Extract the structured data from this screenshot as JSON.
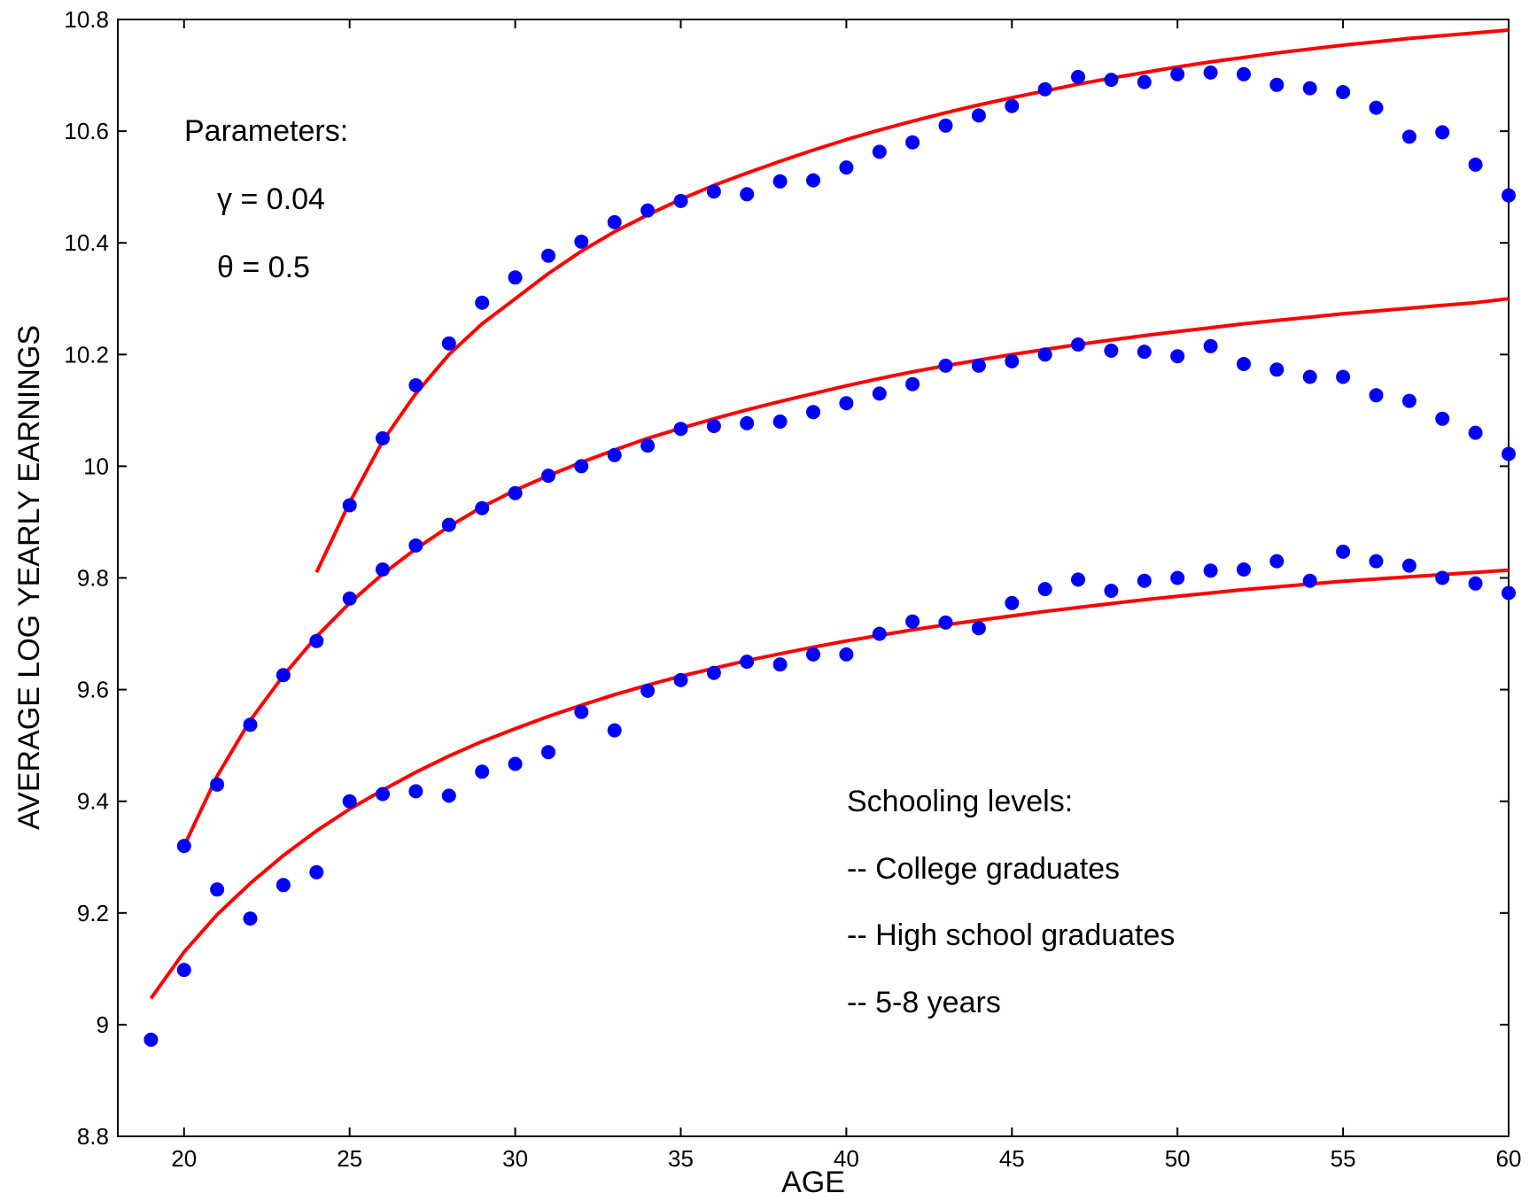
{
  "chart_data": {
    "type": "scatter",
    "xlabel": "AGE",
    "ylabel": "AVERAGE LOG YEARLY EARNINGS",
    "xlim": [
      18,
      60
    ],
    "ylim": [
      8.8,
      10.8
    ],
    "xticks": [
      20,
      25,
      30,
      35,
      40,
      45,
      50,
      55,
      60
    ],
    "yticks": [
      8.8,
      9,
      9.2,
      9.4,
      9.6,
      9.8,
      10,
      10.2,
      10.4,
      10.6,
      10.8
    ],
    "grid": false,
    "colors": {
      "data_points": "#0000ff",
      "model_fit": "#ff0000"
    },
    "annotations": {
      "params_title": "Parameters:",
      "gamma": "γ = 0.04",
      "theta": "θ = 0.5",
      "legend_title": "Schooling levels:",
      "legend_items": [
        "-- College graduates",
        "-- High school graduates",
        "-- 5-8 years"
      ]
    },
    "series": [
      {
        "type": "scatter",
        "x": [
          25,
          26,
          27,
          28,
          29,
          30,
          31,
          32,
          33,
          34,
          35,
          36,
          37,
          38,
          39,
          40,
          41,
          42,
          43,
          44,
          45,
          46,
          47,
          48,
          49,
          50,
          51,
          52,
          53,
          54,
          55,
          56,
          57,
          58,
          59,
          60
        ],
        "y": [
          9.93,
          10.05,
          10.145,
          10.22,
          10.293,
          10.338,
          10.377,
          10.402,
          10.437,
          10.458,
          10.475,
          10.492,
          10.487,
          10.51,
          10.512,
          10.535,
          10.563,
          10.58,
          10.61,
          10.628,
          10.645,
          10.675,
          10.697,
          10.692,
          10.688,
          10.702,
          10.705,
          10.702,
          10.683,
          10.677,
          10.67,
          10.642,
          10.59,
          10.598,
          10.54,
          10.485
        ]
      },
      {
        "type": "line",
        "x": [
          24,
          25,
          26,
          27,
          28,
          29,
          30,
          31,
          32,
          33,
          34,
          35,
          36,
          37,
          38,
          39,
          40,
          41,
          42,
          43,
          44,
          45,
          46,
          47,
          48,
          49,
          50,
          51,
          52,
          53,
          54,
          55,
          56,
          57,
          58,
          59,
          60
        ],
        "y": [
          9.81,
          9.935,
          10.045,
          10.13,
          10.2,
          10.255,
          10.3,
          10.345,
          10.385,
          10.42,
          10.45,
          10.478,
          10.503,
          10.525,
          10.546,
          10.566,
          10.585,
          10.602,
          10.618,
          10.633,
          10.647,
          10.66,
          10.672,
          10.684,
          10.695,
          10.705,
          10.715,
          10.724,
          10.732,
          10.74,
          10.747,
          10.754,
          10.76,
          10.766,
          10.771,
          10.776,
          10.781
        ]
      },
      {
        "type": "scatter",
        "x": [
          20,
          21,
          22,
          23,
          24,
          25,
          26,
          27,
          28,
          29,
          30,
          31,
          32,
          33,
          34,
          35,
          36,
          37,
          38,
          39,
          40,
          41,
          42,
          43,
          44,
          45,
          46,
          47,
          48,
          49,
          50,
          51,
          52,
          53,
          54,
          55,
          56,
          57,
          58,
          59,
          60
        ],
        "y": [
          9.32,
          9.43,
          9.537,
          9.626,
          9.687,
          9.763,
          9.815,
          9.858,
          9.895,
          9.925,
          9.952,
          9.983,
          10.0,
          10.02,
          10.037,
          10.067,
          10.072,
          10.077,
          10.08,
          10.097,
          10.113,
          10.13,
          10.147,
          10.18,
          10.18,
          10.188,
          10.2,
          10.218,
          10.207,
          10.205,
          10.197,
          10.215,
          10.183,
          10.173,
          10.16,
          10.16,
          10.127,
          10.117,
          10.085,
          10.06,
          10.022
        ]
      },
      {
        "type": "line",
        "x": [
          20,
          21,
          22,
          23,
          24,
          25,
          26,
          27,
          28,
          29,
          30,
          31,
          32,
          33,
          34,
          35,
          36,
          37,
          38,
          39,
          40,
          41,
          42,
          43,
          44,
          45,
          46,
          47,
          48,
          49,
          50,
          51,
          52,
          53,
          54,
          55,
          56,
          57,
          58,
          59,
          60
        ],
        "y": [
          9.32,
          9.445,
          9.545,
          9.625,
          9.695,
          9.755,
          9.807,
          9.852,
          9.892,
          9.927,
          9.957,
          9.983,
          10.007,
          10.029,
          10.05,
          10.068,
          10.085,
          10.101,
          10.116,
          10.13,
          10.144,
          10.157,
          10.169,
          10.18,
          10.19,
          10.2,
          10.209,
          10.218,
          10.226,
          10.234,
          10.241,
          10.248,
          10.255,
          10.261,
          10.267,
          10.273,
          10.278,
          10.283,
          10.288,
          10.293,
          10.3
        ]
      },
      {
        "type": "scatter",
        "x": [
          19,
          20,
          21,
          22,
          23,
          24,
          25,
          26,
          27,
          28,
          29,
          30,
          31,
          32,
          33,
          34,
          35,
          36,
          37,
          38,
          39,
          40,
          41,
          42,
          43,
          44,
          45,
          46,
          47,
          48,
          49,
          50,
          51,
          52,
          53,
          54,
          55,
          56,
          57,
          58,
          59,
          60
        ],
        "y": [
          8.973,
          9.098,
          9.242,
          9.19,
          9.25,
          9.273,
          9.4,
          9.413,
          9.418,
          9.41,
          9.453,
          9.467,
          9.488,
          9.56,
          9.527,
          9.598,
          9.617,
          9.63,
          9.65,
          9.645,
          9.663,
          9.663,
          9.7,
          9.722,
          9.72,
          9.71,
          9.755,
          9.78,
          9.797,
          9.777,
          9.795,
          9.8,
          9.813,
          9.815,
          9.83,
          9.795,
          9.847,
          9.83,
          9.822,
          9.8,
          9.79,
          9.773
        ]
      },
      {
        "type": "line",
        "x": [
          19,
          20,
          21,
          22,
          23,
          24,
          25,
          26,
          27,
          28,
          29,
          30,
          31,
          32,
          33,
          34,
          35,
          36,
          37,
          38,
          39,
          40,
          41,
          42,
          43,
          44,
          45,
          46,
          47,
          48,
          49,
          50,
          51,
          52,
          53,
          54,
          55,
          56,
          57,
          58,
          59,
          60
        ],
        "y": [
          9.047,
          9.13,
          9.197,
          9.253,
          9.303,
          9.347,
          9.386,
          9.42,
          9.452,
          9.481,
          9.507,
          9.53,
          9.552,
          9.572,
          9.591,
          9.608,
          9.624,
          9.638,
          9.652,
          9.664,
          9.676,
          9.687,
          9.697,
          9.707,
          9.716,
          9.724,
          9.732,
          9.74,
          9.747,
          9.754,
          9.761,
          9.767,
          9.773,
          9.779,
          9.784,
          9.789,
          9.794,
          9.798,
          9.802,
          9.806,
          9.81,
          9.814
        ]
      }
    ]
  }
}
